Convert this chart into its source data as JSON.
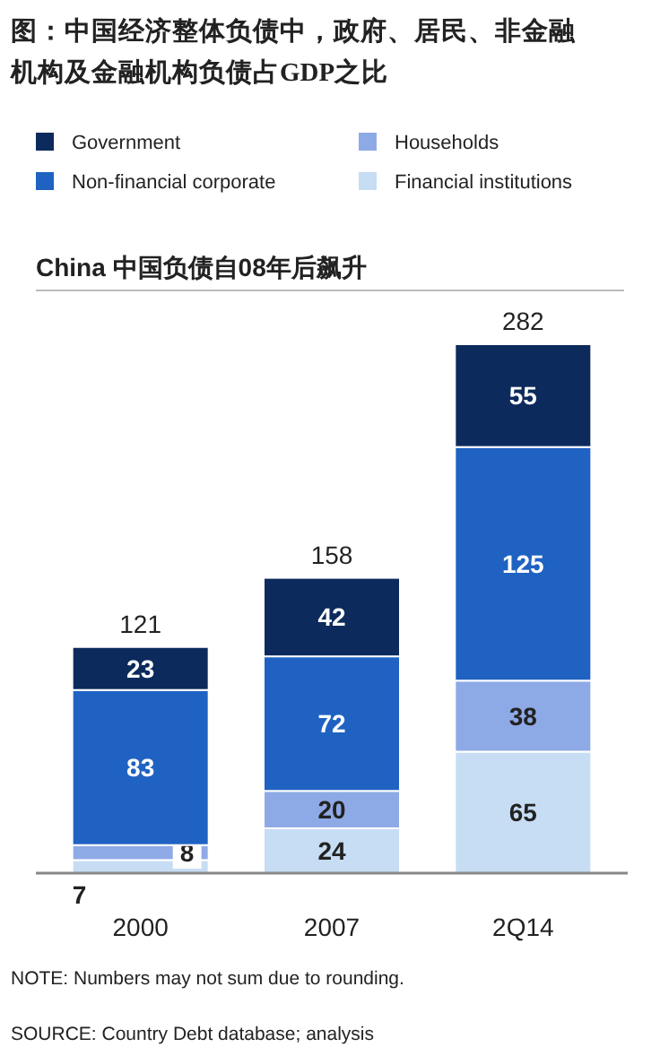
{
  "chart_data": {
    "type": "bar",
    "stacked": true,
    "title": "图：中国经济整体负债中，政府、居民、非金融机构及金融机构负债占GDP之比",
    "subtitle": "China  中国负债自08年后飙升",
    "categories": [
      "2000",
      "2007",
      "2Q14"
    ],
    "series": [
      {
        "name": "Financial institutions",
        "color": "#c6ddf3",
        "values": [
          7,
          24,
          65
        ]
      },
      {
        "name": "Households",
        "color": "#8eaae6",
        "values": [
          8,
          20,
          38
        ]
      },
      {
        "name": "Non-financial corporate",
        "color": "#1f62c2",
        "values": [
          83,
          72,
          125
        ]
      },
      {
        "name": "Government",
        "color": "#0c2a5c",
        "values": [
          23,
          42,
          55
        ]
      }
    ],
    "data_labels": true,
    "totals": [
      "121",
      "158",
      "282"
    ],
    "legend": "top",
    "annotations": [
      "NOTE: Numbers may not sum due to rounding.",
      "SOURCE: Country Debt database; analysis"
    ]
  }
}
